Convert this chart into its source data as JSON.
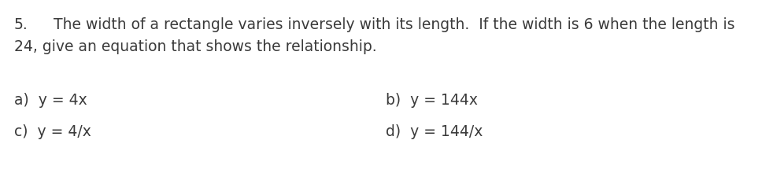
{
  "question_number": "5.",
  "question_line1": "The width of a rectangle varies inversely with its length.  If the width is 6 when the length is",
  "question_line2": "24, give an equation that shows the relationship.",
  "option_a": "a)  y = 4x",
  "option_b": "b)  y = 144x",
  "option_c": "c)  y = 4/x",
  "option_d": "d)  y = 144/x",
  "font_size": 13.5,
  "font_family": "DejaVu Sans",
  "text_color": "#3a3a3a",
  "background_color": "#ffffff",
  "figsize": [
    9.68,
    2.26
  ],
  "dpi": 100
}
